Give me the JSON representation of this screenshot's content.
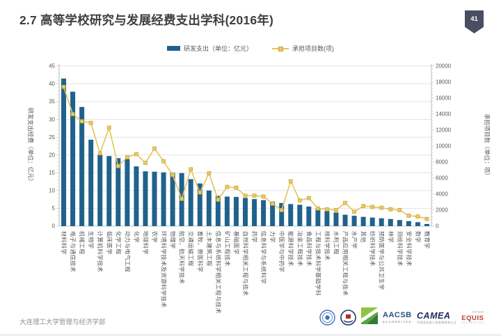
{
  "slide": {
    "title": "2.7  高等学校研究与发展经费支出学科(2016年)",
    "page_number": "41",
    "footer": "大连理工大学管理与经济学部",
    "accreditations": {
      "aacsb": {
        "line1": "AACSB",
        "line2": "ACCREDITED"
      },
      "camea": {
        "line1": "CAMEA",
        "line2": "中国高质量工商管理教育认证"
      },
      "equis": {
        "line1": "EFMD",
        "line2": "EQUIS",
        "line3": "ACCREDITED"
      }
    }
  },
  "colors": {
    "bar": "#1f628c",
    "line": "#e3c45c",
    "marker_fill": "#e8cb60",
    "marker_stroke": "#c7a33b",
    "grid": "#e3e3e3",
    "axis": "#bfbfbf",
    "tick_text": "#595959",
    "badge": "#4a4e63",
    "title_text": "#3f3f3f"
  },
  "chart_data": {
    "type": "bar",
    "title": "",
    "legend_position": "top",
    "grid": true,
    "categories": [
      "材料科学",
      "电子与通信技术",
      "机械工程",
      "生物学",
      "计算机科学技术",
      "临床医学",
      "化学工程",
      "动力与电气工程",
      "化学",
      "地球科学",
      "农学",
      "环境科学技术及资源科学技术",
      "物理学",
      "航空、航天科学技术",
      "交通运输工程",
      "畜牧、兽医科学",
      "土木建筑工程",
      "信息与系统科学相关工程与技术",
      "矿山工程技术",
      "基础医学",
      "自然科学相关工程与技术",
      "药学",
      "信息科学与系统科学",
      "力学",
      "中医学与中药学",
      "能源科学技术",
      "冶金工程技术",
      "食品科学技术",
      "工程与技术科学基础学科",
      "核科学技术",
      "水利工程",
      "产品应用相关工程与技术",
      "水产学",
      "其他",
      "纺织科学技术",
      "预防医学与公共卫生学",
      "林学",
      "测绘科学技术",
      "安全科学技术",
      "数学",
      "教育学"
    ],
    "series": [
      {
        "name": "研发支出（单位：亿元）",
        "type": "bar",
        "axis": "left",
        "values": [
          41.5,
          37.8,
          33.5,
          24.3,
          20.0,
          19.7,
          19.1,
          18.8,
          16.8,
          15.4,
          15.3,
          15.1,
          15.0,
          14.9,
          13.2,
          12.0,
          10.0,
          8.5,
          8.3,
          8.2,
          7.9,
          7.6,
          7.3,
          6.9,
          6.5,
          6.2,
          6.0,
          5.5,
          4.8,
          4.2,
          3.8,
          3.2,
          2.9,
          2.6,
          2.4,
          2.2,
          2.0,
          1.7,
          1.4,
          1.1,
          0.6
        ]
      },
      {
        "name": "承担项目数(项)",
        "type": "line",
        "axis": "right",
        "values": [
          17400,
          14000,
          13100,
          12900,
          9100,
          12300,
          7500,
          8600,
          9000,
          7900,
          9700,
          8100,
          6400,
          3400,
          7100,
          4200,
          6600,
          3300,
          4900,
          4800,
          3800,
          3800,
          3700,
          2800,
          2000,
          5600,
          3200,
          3500,
          2200,
          2100,
          2000,
          2900,
          1800,
          2500,
          2400,
          2300,
          2100,
          2000,
          1300,
          1200,
          900
        ]
      }
    ],
    "left_axis": {
      "label": "研发支出经费（单位：亿元）",
      "min": 0,
      "max": 45,
      "step": 5,
      "ticks": [
        0,
        5,
        10,
        15,
        20,
        25,
        30,
        35,
        40,
        45
      ]
    },
    "right_axis": {
      "label": "承担项目数（单位：项）",
      "min": 0,
      "max": 20000,
      "step": 2000,
      "ticks": [
        0,
        2000,
        4000,
        6000,
        8000,
        10000,
        12000,
        14000,
        16000,
        18000,
        20000
      ]
    }
  }
}
